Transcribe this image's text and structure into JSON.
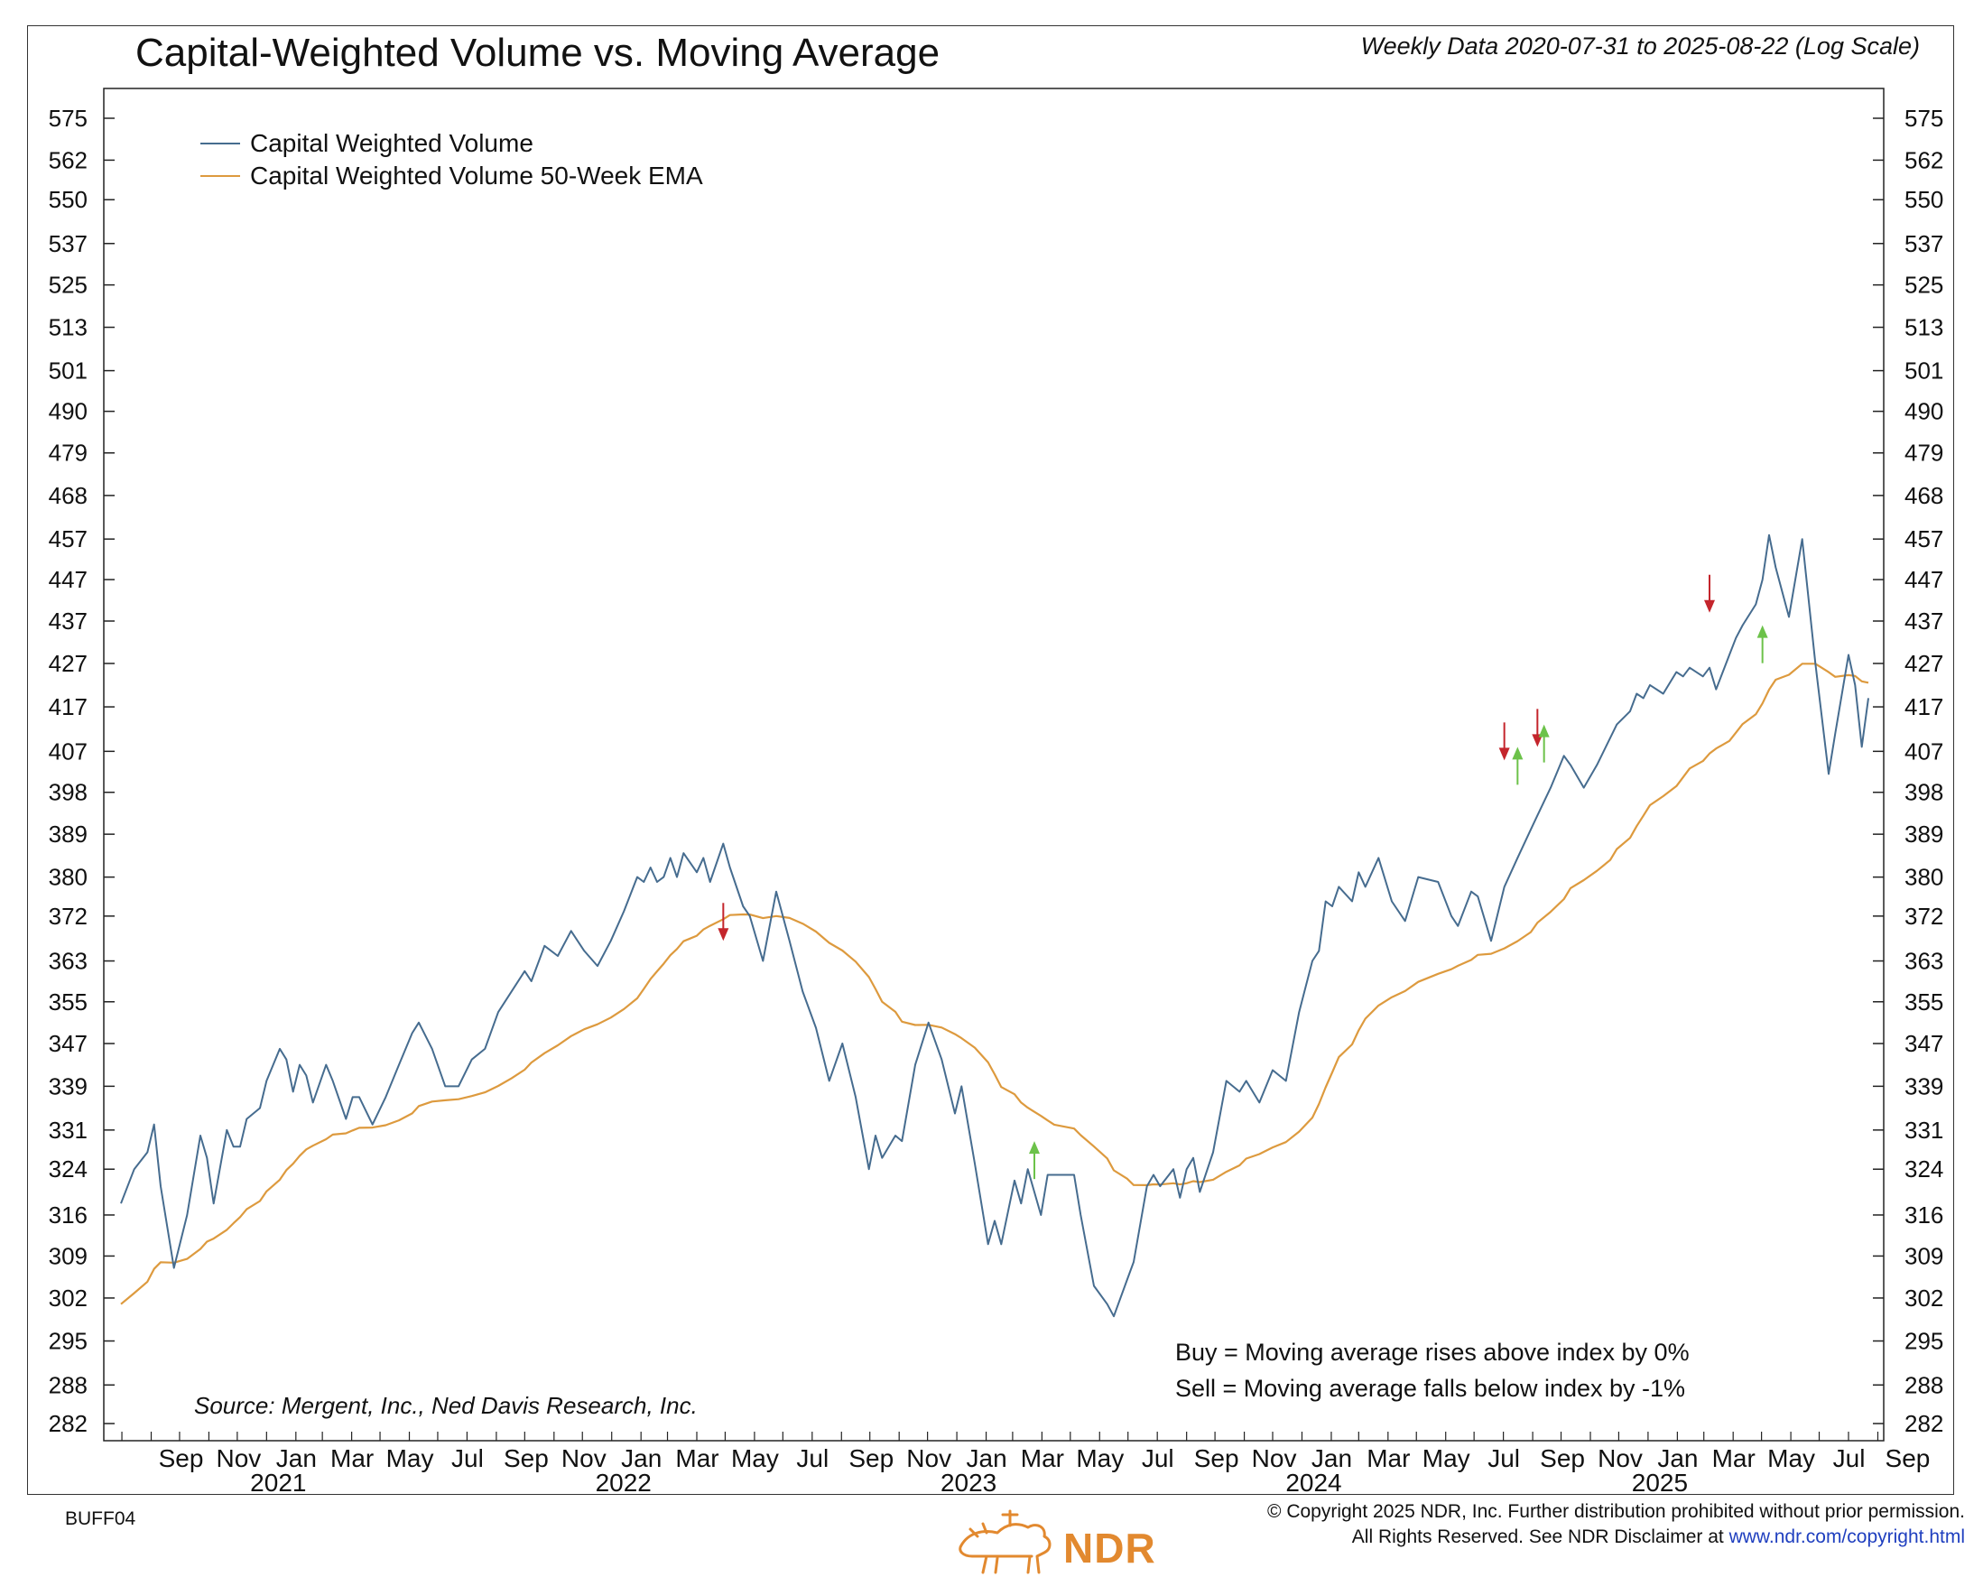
{
  "header": {
    "title": "Capital-Weighted Volume vs. Moving Average",
    "subtitle": "Weekly Data 2020-07-31 to 2025-08-22 (Log Scale)"
  },
  "footer": {
    "source": "Source:   Mergent, Inc., Ned Davis Research, Inc.",
    "buy_rule": "Buy = Moving average rises above index by 0%",
    "sell_rule": "Sell = Moving average falls below index by -1%",
    "chart_code": "BUFF04",
    "copyright_line1": "© Copyright 2025 NDR, Inc. Further distribution prohibited without prior permission.",
    "copyright_line2": "All Rights Reserved. See NDR Disclaimer at ",
    "copyright_link": "www.ndr.com/copyright.html",
    "logo_text": "NDR"
  },
  "colors": {
    "series": "#466c8f",
    "ema": "#dd9a3e",
    "buy_arrow": "#6cc24a",
    "sell_arrow": "#c4252c",
    "logo": "#e2892f"
  },
  "chart_data": {
    "type": "line",
    "log_scale": true,
    "ylim": [
      282,
      575
    ],
    "xlim": [
      "2020-07-31",
      "2025-08-22"
    ],
    "y_ticks": [
      282,
      288,
      295,
      302,
      309,
      316,
      324,
      331,
      339,
      347,
      355,
      363,
      372,
      380,
      389,
      398,
      407,
      417,
      427,
      437,
      447,
      457,
      468,
      479,
      490,
      501,
      513,
      525,
      537,
      550,
      562,
      575
    ],
    "month_labels": [
      {
        "date": "2020-09-01",
        "label": "Sep"
      },
      {
        "date": "2020-11-01",
        "label": "Nov"
      },
      {
        "date": "2021-01-01",
        "label": "Jan"
      },
      {
        "date": "2021-03-01",
        "label": "Mar"
      },
      {
        "date": "2021-05-01",
        "label": "May"
      },
      {
        "date": "2021-07-01",
        "label": "Jul"
      },
      {
        "date": "2021-09-01",
        "label": "Sep"
      },
      {
        "date": "2021-11-01",
        "label": "Nov"
      },
      {
        "date": "2022-01-01",
        "label": "Jan"
      },
      {
        "date": "2022-03-01",
        "label": "Mar"
      },
      {
        "date": "2022-05-01",
        "label": "May"
      },
      {
        "date": "2022-07-01",
        "label": "Jul"
      },
      {
        "date": "2022-09-01",
        "label": "Sep"
      },
      {
        "date": "2022-11-01",
        "label": "Nov"
      },
      {
        "date": "2023-01-01",
        "label": "Jan"
      },
      {
        "date": "2023-03-01",
        "label": "Mar"
      },
      {
        "date": "2023-05-01",
        "label": "May"
      },
      {
        "date": "2023-07-01",
        "label": "Jul"
      },
      {
        "date": "2023-09-01",
        "label": "Sep"
      },
      {
        "date": "2023-11-01",
        "label": "Nov"
      },
      {
        "date": "2024-01-01",
        "label": "Jan"
      },
      {
        "date": "2024-03-01",
        "label": "Mar"
      },
      {
        "date": "2024-05-01",
        "label": "May"
      },
      {
        "date": "2024-07-01",
        "label": "Jul"
      },
      {
        "date": "2024-09-01",
        "label": "Sep"
      },
      {
        "date": "2024-11-01",
        "label": "Nov"
      },
      {
        "date": "2025-01-01",
        "label": "Jan"
      },
      {
        "date": "2025-03-01",
        "label": "Mar"
      },
      {
        "date": "2025-05-01",
        "label": "May"
      },
      {
        "date": "2025-07-01",
        "label": "Jul"
      },
      {
        "date": "2025-09-01",
        "label": "Sep"
      }
    ],
    "year_labels": [
      {
        "date": "2021-01-01",
        "label": "2021"
      },
      {
        "date": "2022-01-01",
        "label": "2022"
      },
      {
        "date": "2023-01-01",
        "label": "2023"
      },
      {
        "date": "2024-01-01",
        "label": "2024"
      },
      {
        "date": "2025-01-01",
        "label": "2025"
      }
    ],
    "legend": {
      "placement": "top-left",
      "entries": [
        "Capital Weighted Volume",
        "Capital Weighted Volume 50-Week EMA"
      ]
    },
    "series": [
      {
        "name": "Capital Weighted Volume",
        "color": "#466c8f",
        "points": [
          [
            "2020-07-31",
            318
          ],
          [
            "2020-08-14",
            324
          ],
          [
            "2020-08-28",
            327
          ],
          [
            "2020-09-04",
            332
          ],
          [
            "2020-09-11",
            321
          ],
          [
            "2020-09-25",
            307
          ],
          [
            "2020-10-09",
            316
          ],
          [
            "2020-10-23",
            330
          ],
          [
            "2020-10-30",
            326
          ],
          [
            "2020-11-06",
            318
          ],
          [
            "2020-11-20",
            331
          ],
          [
            "2020-11-27",
            328
          ],
          [
            "2020-12-04",
            328
          ],
          [
            "2020-12-11",
            333
          ],
          [
            "2020-12-25",
            335
          ],
          [
            "2021-01-01",
            340
          ],
          [
            "2021-01-15",
            346
          ],
          [
            "2021-01-22",
            344
          ],
          [
            "2021-01-29",
            338
          ],
          [
            "2021-02-05",
            343
          ],
          [
            "2021-02-12",
            341
          ],
          [
            "2021-02-19",
            336
          ],
          [
            "2021-03-05",
            343
          ],
          [
            "2021-03-12",
            340
          ],
          [
            "2021-03-26",
            333
          ],
          [
            "2021-04-02",
            337
          ],
          [
            "2021-04-09",
            337
          ],
          [
            "2021-04-23",
            332
          ],
          [
            "2021-05-07",
            337
          ],
          [
            "2021-05-21",
            343
          ],
          [
            "2021-06-04",
            349
          ],
          [
            "2021-06-11",
            351
          ],
          [
            "2021-06-25",
            346
          ],
          [
            "2021-07-09",
            339
          ],
          [
            "2021-07-23",
            339
          ],
          [
            "2021-08-06",
            344
          ],
          [
            "2021-08-20",
            346
          ],
          [
            "2021-09-03",
            353
          ],
          [
            "2021-09-17",
            357
          ],
          [
            "2021-10-01",
            361
          ],
          [
            "2021-10-08",
            359
          ],
          [
            "2021-10-22",
            366
          ],
          [
            "2021-11-05",
            364
          ],
          [
            "2021-11-19",
            369
          ],
          [
            "2021-12-03",
            365
          ],
          [
            "2021-12-17",
            362
          ],
          [
            "2021-12-31",
            367
          ],
          [
            "2022-01-14",
            373
          ],
          [
            "2022-01-28",
            380
          ],
          [
            "2022-02-04",
            379
          ],
          [
            "2022-02-11",
            382
          ],
          [
            "2022-02-18",
            379
          ],
          [
            "2022-02-25",
            380
          ],
          [
            "2022-03-04",
            384
          ],
          [
            "2022-03-11",
            380
          ],
          [
            "2022-03-18",
            385
          ],
          [
            "2022-04-01",
            381
          ],
          [
            "2022-04-08",
            384
          ],
          [
            "2022-04-15",
            379
          ],
          [
            "2022-04-29",
            387
          ],
          [
            "2022-05-06",
            382
          ],
          [
            "2022-05-20",
            374
          ],
          [
            "2022-05-27",
            372
          ],
          [
            "2022-06-10",
            363
          ],
          [
            "2022-06-24",
            377
          ],
          [
            "2022-07-08",
            367
          ],
          [
            "2022-07-22",
            357
          ],
          [
            "2022-08-05",
            350
          ],
          [
            "2022-08-19",
            340
          ],
          [
            "2022-09-02",
            347
          ],
          [
            "2022-09-16",
            337
          ],
          [
            "2022-09-30",
            324
          ],
          [
            "2022-10-07",
            330
          ],
          [
            "2022-10-14",
            326
          ],
          [
            "2022-10-28",
            330
          ],
          [
            "2022-11-04",
            329
          ],
          [
            "2022-11-18",
            343
          ],
          [
            "2022-12-02",
            351
          ],
          [
            "2022-12-16",
            344
          ],
          [
            "2022-12-30",
            334
          ],
          [
            "2023-01-06",
            339
          ],
          [
            "2023-01-20",
            325
          ],
          [
            "2023-02-03",
            311
          ],
          [
            "2023-02-10",
            315
          ],
          [
            "2023-02-17",
            311
          ],
          [
            "2023-03-03",
            322
          ],
          [
            "2023-03-10",
            318
          ],
          [
            "2023-03-17",
            324
          ],
          [
            "2023-03-31",
            316
          ],
          [
            "2023-04-07",
            323
          ],
          [
            "2023-04-14",
            323
          ],
          [
            "2023-05-05",
            323
          ],
          [
            "2023-05-12",
            316
          ],
          [
            "2023-05-26",
            304
          ],
          [
            "2023-06-09",
            301
          ],
          [
            "2023-06-16",
            299
          ],
          [
            "2023-06-30",
            305
          ],
          [
            "2023-07-07",
            308
          ],
          [
            "2023-07-21",
            321
          ],
          [
            "2023-07-28",
            323
          ],
          [
            "2023-08-04",
            321
          ],
          [
            "2023-08-18",
            324
          ],
          [
            "2023-08-25",
            319
          ],
          [
            "2023-09-01",
            324
          ],
          [
            "2023-09-08",
            326
          ],
          [
            "2023-09-15",
            320
          ],
          [
            "2023-09-29",
            327
          ],
          [
            "2023-10-13",
            340
          ],
          [
            "2023-10-27",
            338
          ],
          [
            "2023-11-03",
            340
          ],
          [
            "2023-11-17",
            336
          ],
          [
            "2023-12-01",
            342
          ],
          [
            "2023-12-15",
            340
          ],
          [
            "2023-12-29",
            353
          ],
          [
            "2024-01-12",
            363
          ],
          [
            "2024-01-19",
            365
          ],
          [
            "2024-01-26",
            375
          ],
          [
            "2024-02-02",
            374
          ],
          [
            "2024-02-09",
            378
          ],
          [
            "2024-02-23",
            375
          ],
          [
            "2024-03-01",
            381
          ],
          [
            "2024-03-08",
            378
          ],
          [
            "2024-03-22",
            384
          ],
          [
            "2024-04-05",
            375
          ],
          [
            "2024-04-19",
            371
          ],
          [
            "2024-05-03",
            380
          ],
          [
            "2024-05-24",
            379
          ],
          [
            "2024-06-07",
            372
          ],
          [
            "2024-06-14",
            370
          ],
          [
            "2024-06-28",
            377
          ],
          [
            "2024-07-05",
            376
          ],
          [
            "2024-07-19",
            367
          ],
          [
            "2024-08-02",
            378
          ],
          [
            "2024-08-16",
            384
          ],
          [
            "2024-08-30",
            390
          ],
          [
            "2024-09-06",
            393
          ],
          [
            "2024-09-20",
            399
          ],
          [
            "2024-10-04",
            406
          ],
          [
            "2024-10-11",
            404
          ],
          [
            "2024-10-25",
            399
          ],
          [
            "2024-11-08",
            404
          ],
          [
            "2024-11-22",
            410
          ],
          [
            "2024-11-29",
            413
          ],
          [
            "2024-12-13",
            416
          ],
          [
            "2024-12-20",
            420
          ],
          [
            "2024-12-27",
            419
          ],
          [
            "2025-01-03",
            422
          ],
          [
            "2025-01-17",
            420
          ],
          [
            "2025-01-31",
            425
          ],
          [
            "2025-02-07",
            424
          ],
          [
            "2025-02-14",
            426
          ],
          [
            "2025-02-28",
            424
          ],
          [
            "2025-03-07",
            426
          ],
          [
            "2025-03-14",
            421
          ],
          [
            "2025-03-28",
            429
          ],
          [
            "2025-04-04",
            433
          ],
          [
            "2025-04-11",
            436
          ],
          [
            "2025-04-25",
            441
          ],
          [
            "2025-05-02",
            447
          ],
          [
            "2025-05-09",
            458
          ],
          [
            "2025-05-16",
            450
          ],
          [
            "2025-05-30",
            438
          ],
          [
            "2025-06-13",
            457
          ],
          [
            "2025-06-27",
            427
          ],
          [
            "2025-07-11",
            402
          ],
          [
            "2025-07-18",
            411
          ],
          [
            "2025-08-01",
            429
          ],
          [
            "2025-08-08",
            422
          ],
          [
            "2025-08-15",
            408
          ],
          [
            "2025-08-22",
            419
          ]
        ]
      },
      {
        "name": "Capital Weighted Volume 50-Week EMA",
        "color": "#dd9a3e",
        "points": [
          [
            "2020-07-31",
            301
          ]
        ]
      }
    ],
    "signals": [
      {
        "type": "sell",
        "date": "2022-04-29",
        "value": 367
      },
      {
        "type": "buy",
        "date": "2023-03-24",
        "value": 329
      },
      {
        "type": "sell",
        "date": "2024-08-02",
        "value": 405
      },
      {
        "type": "buy",
        "date": "2024-08-16",
        "value": 408
      },
      {
        "type": "sell",
        "date": "2024-09-06",
        "value": 408
      },
      {
        "type": "buy",
        "date": "2024-09-13",
        "value": 413
      },
      {
        "type": "sell",
        "date": "2025-03-07",
        "value": 439
      },
      {
        "type": "buy",
        "date": "2025-05-02",
        "value": 436
      }
    ]
  }
}
